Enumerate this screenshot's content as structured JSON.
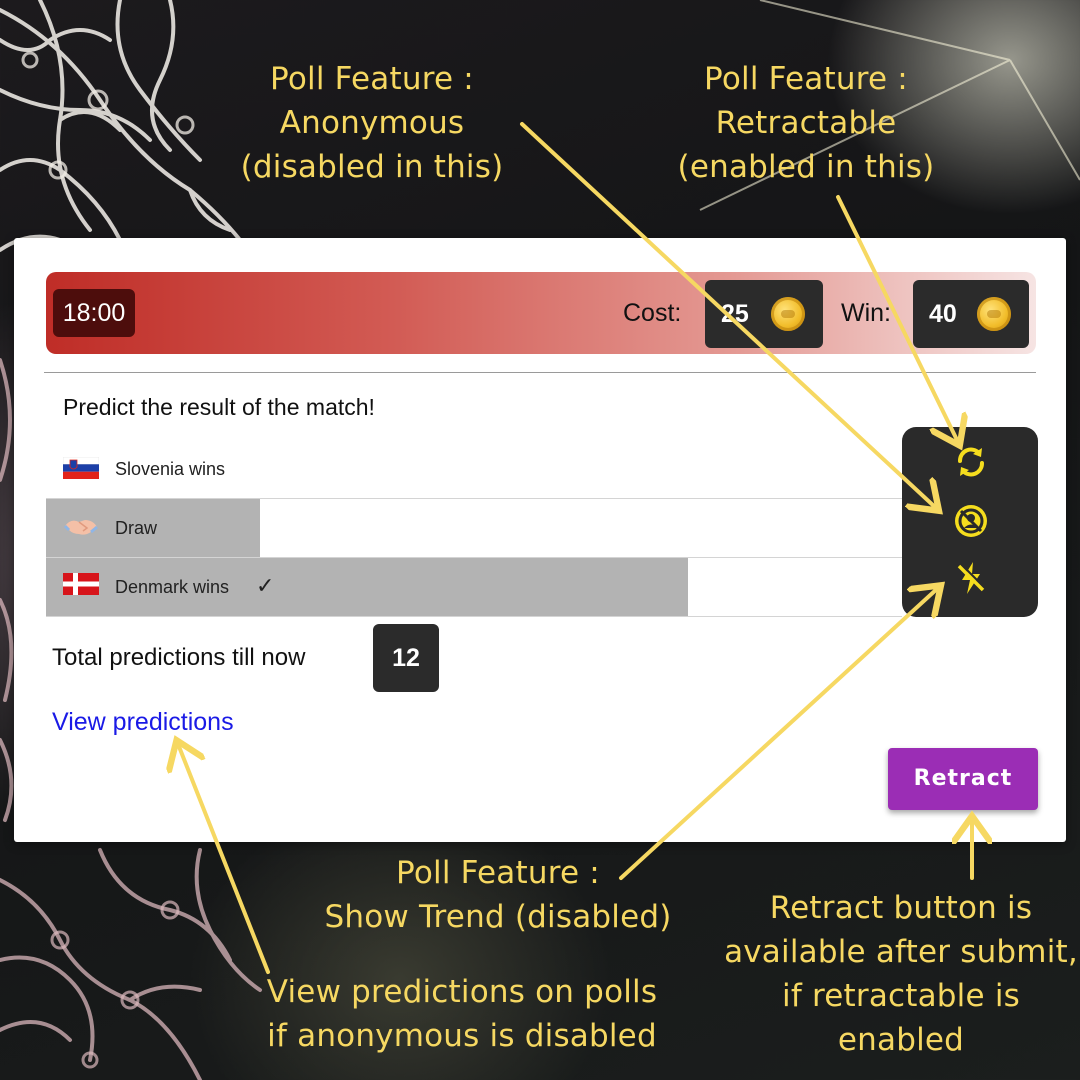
{
  "annotations": {
    "anonymous": {
      "line1": "Poll Feature :",
      "line2": "Anonymous",
      "line3": "(disabled in this)"
    },
    "retractable": {
      "line1": "Poll Feature :",
      "line2": "Retractable",
      "line3": "(enabled in this)"
    },
    "show_trend": {
      "line1": "Poll Feature :",
      "line2": "Show Trend (disabled)"
    },
    "view_predictions": {
      "line1": "View predictions on polls",
      "line2": "if anonymous is disabled"
    },
    "retract": {
      "line1": "Retract button is",
      "line2": "available after submit,",
      "line3": "if retractable is",
      "line4": "enabled"
    }
  },
  "poll": {
    "timer": "18:00",
    "cost_label": "Cost:",
    "cost_value": "25",
    "win_label": "Win:",
    "win_value": "40",
    "question": "Predict the result of the match!",
    "options": [
      {
        "label": "Slovenia wins",
        "share": 0,
        "flag": "slovenia-flag",
        "selected": false
      },
      {
        "label": "Draw",
        "share": 0.25,
        "flag": "handshake-icon",
        "selected": false
      },
      {
        "label": "Denmark wins",
        "share": 0.75,
        "flag": "denmark-flag",
        "selected": true,
        "check": "✓"
      }
    ],
    "total_label": "Total predictions till now",
    "total_value": "12",
    "view_link": "View predictions",
    "retract_label": "Retract",
    "feature_icons": [
      "retractable-icon",
      "anonymous-disabled-icon",
      "show-trend-disabled-icon"
    ]
  },
  "colors": {
    "accent_purple": "#9b2db5",
    "annotation_yellow": "#f6d862",
    "header_red": "#bf2d27",
    "link_blue": "#1a1ae6"
  }
}
